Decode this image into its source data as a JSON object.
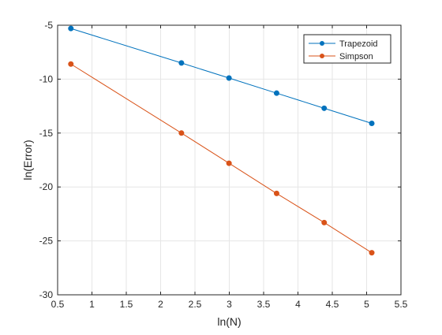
{
  "chart_data": {
    "type": "line",
    "title": "",
    "xlabel": "ln(N)",
    "ylabel": "ln(Error)",
    "xlim": [
      0.5,
      5.5
    ],
    "ylim": [
      -30,
      -5
    ],
    "xticks": [
      0.5,
      1,
      1.5,
      2,
      2.5,
      3,
      3.5,
      4,
      4.5,
      5,
      5.5
    ],
    "xtick_labels": [
      "0.5",
      "1",
      "1.5",
      "2",
      "2.5",
      "3",
      "3.5",
      "4",
      "4.5",
      "5",
      "5.5"
    ],
    "yticks": [
      -30,
      -25,
      -20,
      -15,
      -10,
      -5
    ],
    "ytick_labels": [
      "-30",
      "-25",
      "-20",
      "-15",
      "-10",
      "-5"
    ],
    "grid": true,
    "legend_position": "top-right",
    "series": [
      {
        "name": "Trapezoid",
        "color": "#0072BD",
        "marker": "circle",
        "x": [
          0.693,
          2.303,
          2.996,
          3.689,
          4.382,
          5.075
        ],
        "y": [
          -5.3,
          -8.5,
          -9.9,
          -11.3,
          -12.7,
          -14.1
        ]
      },
      {
        "name": "Simpson",
        "color": "#D95319",
        "marker": "circle",
        "x": [
          0.693,
          2.303,
          2.996,
          3.689,
          4.382,
          5.075
        ],
        "y": [
          -8.6,
          -15.0,
          -17.8,
          -20.6,
          -23.3,
          -26.1
        ]
      }
    ]
  }
}
